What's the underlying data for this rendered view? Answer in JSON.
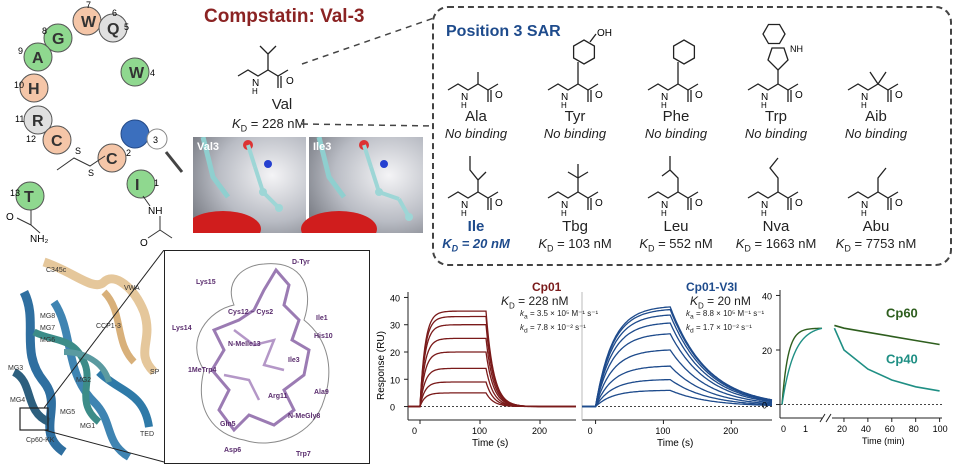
{
  "title": "Compstatin: Val-3",
  "helix": {
    "residues": [
      {
        "letter": "W",
        "num": "7",
        "color": "#f5c6a8"
      },
      {
        "letter": "Q",
        "num": "5",
        "color": "#e0e0e0"
      },
      {
        "letter": "G",
        "num": "8",
        "color": "#8fd88f"
      },
      {
        "letter": "W",
        "num": "4",
        "color": "#8fd88f"
      },
      {
        "letter": "A",
        "num": "9",
        "color": "#8fd88f"
      },
      {
        "letter": "H",
        "num": "10",
        "color": "#f5c6a8"
      },
      {
        "letter": "R",
        "num": "11",
        "color": "#e0e0e0"
      },
      {
        "letter": "C",
        "num": "12",
        "color": "#f5c6a8"
      },
      {
        "letter": "C",
        "num": "2",
        "color": "#f5c6a8"
      },
      {
        "letter": "I",
        "num": "1",
        "color": "#8fd88f"
      },
      {
        "letter": "T",
        "num": "13",
        "color": "#8fd88f"
      }
    ],
    "hidden_num": "6",
    "pos3": "3",
    "s_label1": "S",
    "s_label2": "S",
    "amide_o": "O",
    "amide_nh2": "NH₂",
    "nh": "NH",
    "acetyl_o": "O"
  },
  "val": {
    "name": "Val",
    "kd_prefix": "K",
    "kd_sub": "D",
    "kd_value": " = 228 nM",
    "nh": "N",
    "h": "H",
    "o": "O"
  },
  "renders": {
    "left_label": "Val3",
    "right_label": "Ile3"
  },
  "sar": {
    "title": "Position 3 SAR",
    "row1": [
      {
        "name": "Ala",
        "note": "No binding"
      },
      {
        "name": "Tyr",
        "note": "No binding"
      },
      {
        "name": "Phe",
        "note": "No binding"
      },
      {
        "name": "Trp",
        "note": "No binding"
      },
      {
        "name": "Aib",
        "note": "No binding"
      }
    ],
    "row2": [
      {
        "name": "Ile",
        "kd": " = 20 nM"
      },
      {
        "name": "Tbg",
        "kd": " = 103 nM"
      },
      {
        "name": "Leu",
        "kd": " = 552 nM"
      },
      {
        "name": "Nva",
        "kd": " = 1663 nM"
      },
      {
        "name": "Abu",
        "kd": " = 7753 nM"
      }
    ],
    "kd_prefix": "K",
    "kd_sub": "D",
    "oh": "OH",
    "nh_label": "NH",
    "n_label": "N",
    "h_label": "H",
    "o_label": "O"
  },
  "complex": {
    "labels": [
      "C345c",
      "VWA",
      "MG8",
      "MG7",
      "CCP1-3",
      "MG6",
      "SP",
      "MG3",
      "MG2",
      "MG4",
      "MG5",
      "MG1",
      "TED",
      "Cp60-KK"
    ]
  },
  "zoom": {
    "labels": [
      "D-Tyr",
      "Lys15",
      "Cys12 – Cys2",
      "Ile1",
      "Lys14",
      "N-MeIle13",
      "His10",
      "1MeTrp4",
      "Ile3",
      "Arg11",
      "Ala9",
      "Gln5",
      "N-MeGly8",
      "Asp6",
      "Trp7"
    ]
  },
  "spr": {
    "ylabel": "Response (RU)",
    "xlabel": "Time (s)",
    "yticks": [
      "0",
      "10",
      "20",
      "30",
      "40"
    ],
    "xticks": [
      "0",
      "100",
      "200"
    ],
    "cp01": {
      "name": "Cp01",
      "kd": " = 228 nM",
      "ka": "= 3.5 × 10⁵ M⁻¹ s⁻¹",
      "kd_rate": "= 7.8 × 10⁻² s⁻¹"
    },
    "cp01v3i": {
      "name": "Cp01-V3I",
      "kd": " = 20 nM",
      "ka": "= 8.8 × 10⁵ M⁻¹ s⁻¹",
      "kd_rate": "= 1.7 × 10⁻² s⁻¹"
    },
    "ka_sym": "k",
    "ka_sub": "a",
    "kd_sym": "k",
    "kd_sub": "d",
    "colors": {
      "cp01": "#7a1a1a",
      "cp01v3i": "#1e4b8c"
    }
  },
  "diss": {
    "yticks": [
      "0",
      "20",
      "40"
    ],
    "xticks_left": [
      "0",
      "1"
    ],
    "xticks_right": [
      "20",
      "40",
      "60",
      "80",
      "100"
    ],
    "xlabel": "Time (min)",
    "cp60": "Cp60",
    "cp40": "Cp40",
    "colors": {
      "cp60": "#2e5e1e",
      "cp40": "#1f8f84"
    }
  },
  "chart_data": [
    {
      "type": "line",
      "title": "Cp01",
      "xlabel": "Time (s)",
      "ylabel": "Response (RU)",
      "xlim": [
        -20,
        260
      ],
      "ylim": [
        -2,
        42
      ],
      "association_end": 110,
      "series": [
        {
          "plateau": 35
        },
        {
          "plateau": 33
        },
        {
          "plateau": 30
        },
        {
          "plateau": 25
        },
        {
          "plateau": 20
        },
        {
          "plateau": 14
        },
        {
          "plateau": 9
        },
        {
          "plateau": 5
        }
      ]
    },
    {
      "type": "line",
      "title": "Cp01-V3I",
      "xlabel": "Time (s)",
      "ylabel": "Response (RU)",
      "xlim": [
        -20,
        260
      ],
      "ylim": [
        -2,
        42
      ],
      "association_end": 110,
      "series": [
        {
          "plateau": 37
        },
        {
          "plateau": 36
        },
        {
          "plateau": 34
        },
        {
          "plateau": 31
        },
        {
          "plateau": 27
        },
        {
          "plateau": 21
        },
        {
          "plateau": 15
        },
        {
          "plateau": 10
        },
        {
          "plateau": 6
        }
      ]
    },
    {
      "type": "line",
      "xlabel": "Time (min)",
      "ylim": [
        -2,
        42
      ],
      "series": [
        {
          "name": "Cp60",
          "values_min": [
            [
              20,
              28
            ],
            [
              40,
              26.5
            ],
            [
              60,
              25
            ],
            [
              80,
              23.5
            ],
            [
              100,
              22
            ]
          ]
        },
        {
          "name": "Cp40",
          "values_min": [
            [
              20,
              20
            ],
            [
              40,
              13
            ],
            [
              60,
              9
            ],
            [
              80,
              6.5
            ],
            [
              100,
              5
            ]
          ]
        }
      ]
    }
  ]
}
